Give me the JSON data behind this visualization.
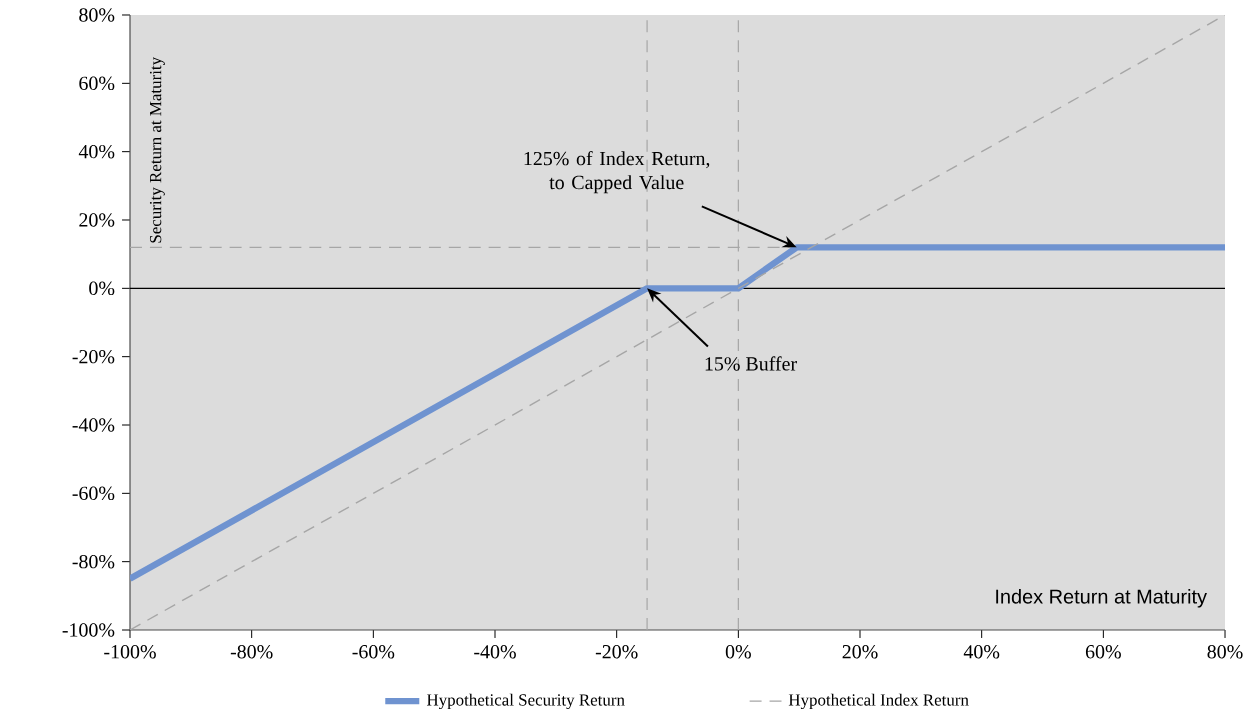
{
  "chart_data": {
    "type": "line",
    "xlabel": "Index Return at Maturity",
    "ylabel": "Security Return at Maturity",
    "xlim": [
      -100,
      80
    ],
    "ylim": [
      -100,
      80
    ],
    "xticks": [
      {
        "value": -100,
        "label": "-100%"
      },
      {
        "value": -80,
        "label": "-80%"
      },
      {
        "value": -60,
        "label": "-60%"
      },
      {
        "value": -40,
        "label": "-40%"
      },
      {
        "value": -20,
        "label": "-20%"
      },
      {
        "value": 0,
        "label": "0%"
      },
      {
        "value": 20,
        "label": "20%"
      },
      {
        "value": 40,
        "label": "40%"
      },
      {
        "value": 60,
        "label": "60%"
      },
      {
        "value": 80,
        "label": "80%"
      }
    ],
    "yticks": [
      {
        "value": -100,
        "label": "-100%"
      },
      {
        "value": -80,
        "label": "-80%"
      },
      {
        "value": -60,
        "label": "-60%"
      },
      {
        "value": -40,
        "label": "-40%"
      },
      {
        "value": -20,
        "label": "-20%"
      },
      {
        "value": 0,
        "label": "0%"
      },
      {
        "value": 20,
        "label": "20%"
      },
      {
        "value": 40,
        "label": "40%"
      },
      {
        "value": 60,
        "label": "60%"
      },
      {
        "value": 80,
        "label": "80%"
      }
    ],
    "series": [
      {
        "name": "Hypothetical Security Return",
        "color": "#6f93d0",
        "line_style": "solid",
        "x": [
          -100,
          -15,
          0,
          9.6,
          80
        ],
        "values": [
          -85,
          0,
          0,
          12,
          12
        ]
      },
      {
        "name": "Hypothetical Index Return",
        "color": "#a6a6a6",
        "line_style": "dashed",
        "x": [
          -100,
          80
        ],
        "values": [
          -100,
          80
        ]
      }
    ],
    "ref_lines": [
      {
        "axis": "y",
        "value": 0,
        "color": "#000000",
        "line_style": "solid"
      },
      {
        "axis": "y",
        "value": 12,
        "color": "#a6a6a6",
        "line_style": "dashed"
      },
      {
        "axis": "x",
        "value": -15,
        "color": "#a6a6a6",
        "line_style": "dashed"
      },
      {
        "axis": "x",
        "value": 0,
        "color": "#a6a6a6",
        "line_style": "dashed"
      }
    ],
    "annotations": [
      {
        "text": "125% of Index Return, to Capped Value",
        "x": 9.6,
        "y": 12
      },
      {
        "text": "15% Buffer",
        "x": -15,
        "y": 0
      }
    ],
    "grid": false,
    "legend": "bottom"
  }
}
